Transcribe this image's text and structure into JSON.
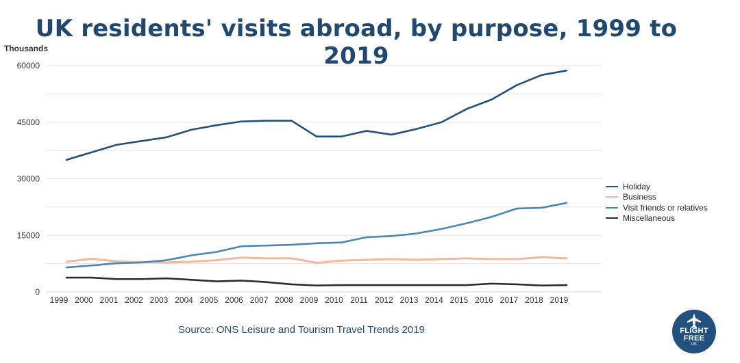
{
  "header": {
    "title": "UK residents' visits abroad, by purpose, 1999 to 2019"
  },
  "chart_data": {
    "type": "line",
    "title": "UK residents' visits abroad, by purpose, 1999 to 2019",
    "ylabel": "Thousands",
    "xlabel": "",
    "categories": [
      "1999",
      "2000",
      "2001",
      "2002",
      "2003",
      "2004",
      "2005",
      "2006",
      "2007",
      "2008",
      "2009",
      "2010",
      "2011",
      "2012",
      "2013",
      "2014",
      "2015",
      "2016",
      "2017",
      "2018",
      "2019"
    ],
    "yticks": [
      0,
      15000,
      30000,
      45000,
      60000
    ],
    "ylim": [
      0,
      60000
    ],
    "grid": true,
    "legend_position": "right",
    "series": [
      {
        "name": "Holiday",
        "color": "#22507a",
        "values": [
          35000,
          37000,
          39000,
          40000,
          41000,
          43000,
          44200,
          45200,
          45400,
          45400,
          41200,
          41200,
          42700,
          41700,
          43200,
          45000,
          48500,
          51000,
          54800,
          57500,
          58700
        ]
      },
      {
        "name": "Business",
        "color": "#f1b99a",
        "values": [
          8000,
          8800,
          8100,
          7900,
          7800,
          8000,
          8400,
          9100,
          8900,
          8900,
          7700,
          8300,
          8500,
          8700,
          8500,
          8700,
          8900,
          8700,
          8700,
          9200,
          8900
        ]
      },
      {
        "name": "Visit friends or relatives",
        "color": "#4a86b4",
        "values": [
          6500,
          7000,
          7600,
          7800,
          8400,
          9700,
          10600,
          12100,
          12300,
          12500,
          12900,
          13100,
          14500,
          14800,
          15500,
          16700,
          18200,
          19900,
          22100,
          22300,
          23600
        ]
      },
      {
        "name": "Miscellaneous",
        "color": "#2b2b2b",
        "values": [
          3800,
          3800,
          3400,
          3400,
          3600,
          3200,
          2800,
          3000,
          2600,
          2000,
          1700,
          1800,
          1800,
          1800,
          1800,
          1800,
          1800,
          2200,
          2000,
          1700,
          1800
        ]
      }
    ]
  },
  "footer": {
    "source": "Source: ONS Leisure and Tourism Travel Trends 2019"
  },
  "logo": {
    "line1": "FLIGHT",
    "line2": "FREE",
    "line3": "UK"
  }
}
